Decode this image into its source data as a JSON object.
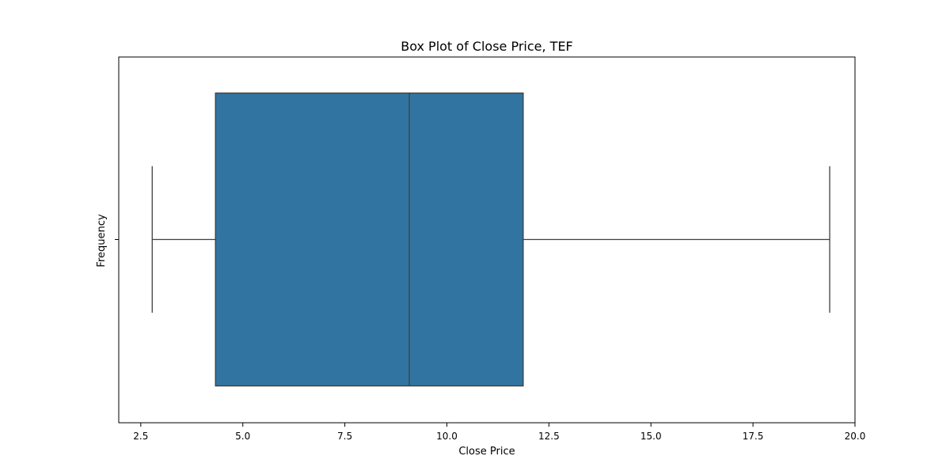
{
  "chart_data": {
    "type": "box",
    "title": "Box Plot of Close Price, TEF",
    "xlabel": "Close Price",
    "ylabel": "Frequency",
    "orientation": "horizontal",
    "xlim": [
      1.96,
      20.0
    ],
    "xticks": [
      2.5,
      5.0,
      7.5,
      10.0,
      12.5,
      15.0,
      17.5,
      20.0
    ],
    "xtick_labels": [
      "2.5",
      "5.0",
      "7.5",
      "10.0",
      "12.5",
      "15.0",
      "17.5",
      "20.0"
    ],
    "grid": false,
    "box": {
      "whisker_low": 2.78,
      "q1": 4.33,
      "median": 9.08,
      "q3": 11.87,
      "whisker_high": 19.38
    },
    "colors": {
      "box_fill": "#3274a1",
      "lines": "#3f3f3f",
      "axes": "#000000"
    }
  }
}
